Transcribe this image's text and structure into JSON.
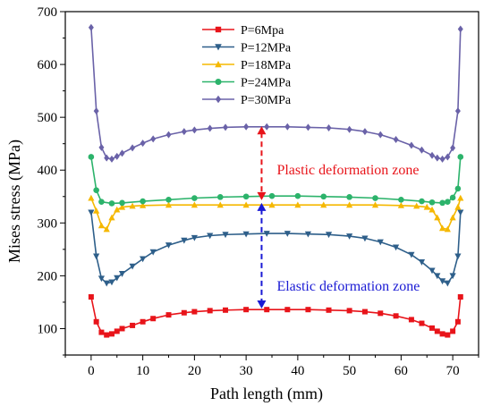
{
  "chart_data": {
    "type": "line",
    "xlabel": "Path length (mm)",
    "ylabel": "Mises stress (MPa)",
    "xlim": [
      -5,
      75
    ],
    "ylim": [
      50,
      700
    ],
    "xticks": [
      0,
      10,
      20,
      30,
      40,
      50,
      60,
      70
    ],
    "yticks": [
      100,
      200,
      300,
      400,
      500,
      600,
      700
    ],
    "grid": false,
    "legend_position": "top-center",
    "series": [
      {
        "name": "P=6Mpa",
        "color": "#e8141a",
        "marker": "square",
        "x": [
          0,
          1,
          2,
          3,
          4,
          5,
          6,
          8,
          10,
          12,
          15,
          18,
          20,
          23,
          26,
          30,
          34,
          38,
          42,
          46,
          50,
          53,
          56,
          59,
          62,
          64,
          66,
          67,
          68,
          69,
          70,
          71,
          71.5
        ],
        "y": [
          160,
          113,
          93,
          88,
          90,
          95,
          100,
          106,
          113,
          119,
          126,
          130,
          132,
          134,
          135,
          136,
          136,
          136,
          136,
          135,
          134,
          132,
          129,
          124,
          117,
          110,
          101,
          95,
          90,
          88,
          95,
          113,
          160
        ]
      },
      {
        "name": "P=12MPa",
        "color": "#2e5f8a",
        "marker": "triangle-down",
        "x": [
          0,
          1,
          2,
          3,
          4,
          5,
          6,
          8,
          10,
          12,
          15,
          18,
          20,
          23,
          26,
          30,
          34,
          38,
          42,
          46,
          50,
          53,
          56,
          59,
          62,
          64,
          66,
          67,
          68,
          69,
          70,
          71,
          71.5
        ],
        "y": [
          320,
          237,
          195,
          186,
          188,
          196,
          204,
          218,
          232,
          245,
          258,
          267,
          272,
          276,
          278,
          279,
          280,
          280,
          279,
          278,
          275,
          271,
          264,
          254,
          240,
          226,
          210,
          200,
          190,
          186,
          200,
          237,
          320
        ]
      },
      {
        "name": "P=18MPa",
        "color": "#f5b800",
        "marker": "triangle-up",
        "x": [
          0,
          1,
          2,
          3,
          4,
          5,
          6,
          8,
          10,
          15,
          20,
          25,
          30,
          35,
          40,
          45,
          50,
          55,
          60,
          63,
          65,
          66,
          67,
          68,
          69,
          70,
          71,
          71.5
        ],
        "y": [
          347,
          323,
          295,
          288,
          310,
          325,
          330,
          332,
          333,
          334,
          334,
          334,
          334,
          334,
          334,
          334,
          334,
          334,
          333,
          332,
          330,
          325,
          310,
          290,
          288,
          310,
          330,
          347
        ]
      },
      {
        "name": "P=24MPa",
        "color": "#2cb36b",
        "marker": "circle",
        "x": [
          0,
          1,
          2,
          4,
          6,
          10,
          15,
          20,
          25,
          30,
          35,
          40,
          45,
          50,
          55,
          60,
          64,
          66,
          68,
          69,
          70,
          71,
          71.5
        ],
        "y": [
          425,
          362,
          340,
          337,
          338,
          341,
          344,
          347,
          349,
          350,
          351,
          351,
          350,
          349,
          347,
          344,
          341,
          339,
          338,
          340,
          348,
          365,
          425
        ]
      },
      {
        "name": "P=30MPa",
        "color": "#6a62a8",
        "marker": "diamond",
        "x": [
          0,
          1,
          2,
          3,
          4,
          5,
          6,
          8,
          10,
          12,
          15,
          18,
          20,
          23,
          26,
          30,
          34,
          38,
          42,
          46,
          50,
          53,
          56,
          59,
          62,
          64,
          66,
          67,
          68,
          69,
          70,
          71,
          71.5
        ],
        "y": [
          670,
          512,
          443,
          423,
          421,
          426,
          432,
          442,
          451,
          459,
          467,
          473,
          476,
          479,
          481,
          482,
          482,
          482,
          481,
          480,
          477,
          473,
          467,
          458,
          447,
          438,
          428,
          423,
          421,
          425,
          442,
          512,
          667
        ]
      }
    ],
    "annotations": [
      {
        "text": "Plastic deformation zone",
        "color": "#e8141a",
        "x": 33,
        "y": 400,
        "arrow_from": 343,
        "arrow_to": 483
      },
      {
        "text": "Elastic deformation zone",
        "color": "#1a1ad4",
        "x": 33,
        "y": 180,
        "arrow_from": 138,
        "arrow_to": 338
      }
    ]
  }
}
